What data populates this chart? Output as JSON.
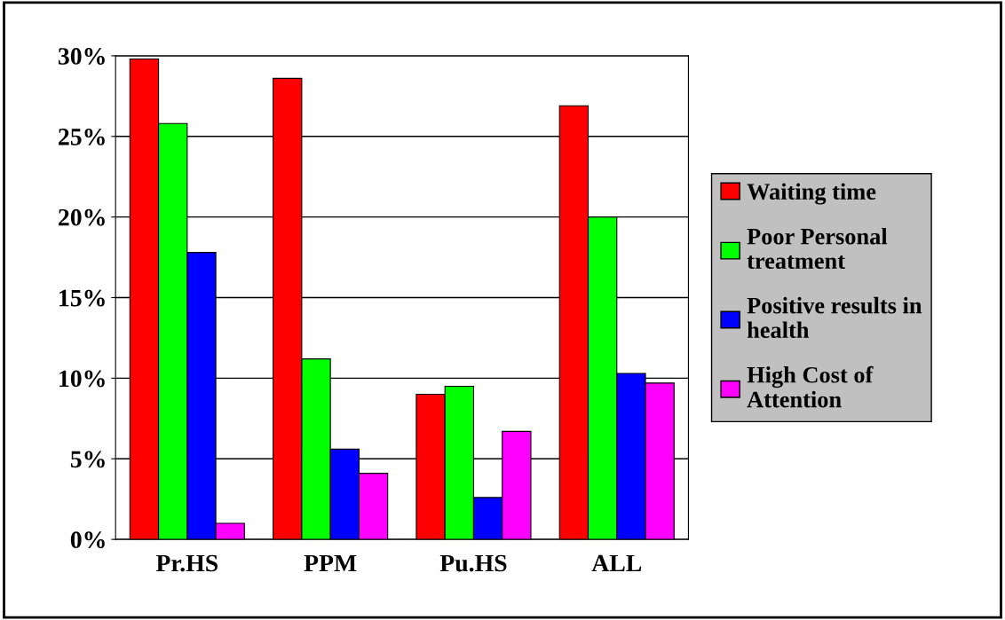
{
  "chart_data": {
    "type": "bar",
    "categories": [
      "Pr.HS",
      "PPM",
      "Pu.HS",
      "ALL"
    ],
    "series": [
      {
        "name": "Waiting time",
        "color": "#ff0000",
        "values": [
          29.8,
          28.6,
          9.0,
          26.9
        ]
      },
      {
        "name": "Poor Personal treatment",
        "color": "#00ff00",
        "values": [
          25.8,
          11.2,
          9.5,
          20.0
        ]
      },
      {
        "name": "Positive results in health",
        "color": "#0000ff",
        "values": [
          17.8,
          5.6,
          2.6,
          10.3
        ]
      },
      {
        "name": "High Cost of Attention",
        "color": "#ff00ff",
        "values": [
          1.0,
          4.1,
          6.7,
          9.7
        ]
      }
    ],
    "ylim": [
      0,
      30
    ],
    "yticks": [
      {
        "value": 0,
        "label": "0%"
      },
      {
        "value": 5,
        "label": "5%"
      },
      {
        "value": 10,
        "label": "10%"
      },
      {
        "value": 15,
        "label": "15%"
      },
      {
        "value": 20,
        "label": "20%"
      },
      {
        "value": 25,
        "label": "25%"
      },
      {
        "value": 30,
        "label": "30%"
      }
    ],
    "grid": "y",
    "legend": "right"
  }
}
